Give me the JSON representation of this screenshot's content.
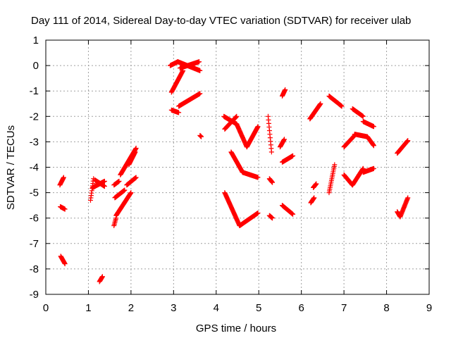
{
  "colors": {
    "series": "#ff0000",
    "axis": "#000000",
    "grid": "#a0a0a0"
  },
  "chart_data": {
    "type": "scatter",
    "title": "Day 111 of 2014, Sidereal Day-to-day VTEC variation (SDTVAR) for receiver ulab",
    "xlabel": "GPS time / hours",
    "ylabel": "SDTVAR / TECUs",
    "xlim": [
      0,
      9
    ],
    "ylim": [
      -9,
      1
    ],
    "xticks": [
      0,
      1,
      2,
      3,
      4,
      5,
      6,
      7,
      8,
      9
    ],
    "yticks": [
      1,
      0,
      -1,
      -2,
      -3,
      -4,
      -5,
      -6,
      -7,
      -8,
      -9
    ],
    "grid": true,
    "marker": "+",
    "point_spacing_hours": 0.008,
    "segments": [
      {
        "x": [
          0.33,
          0.42
        ],
        "y": [
          -4.7,
          -4.4
        ]
      },
      {
        "x": [
          0.34,
          0.45
        ],
        "y": [
          -5.55,
          -5.65
        ]
      },
      {
        "x": [
          0.35,
          0.45
        ],
        "y": [
          -7.5,
          -7.8
        ]
      },
      {
        "x": [
          1.05,
          1.12
        ],
        "y": [
          -5.3,
          -4.45
        ]
      },
      {
        "x": [
          1.1,
          1.38
        ],
        "y": [
          -4.8,
          -4.55
        ]
      },
      {
        "x": [
          1.15,
          1.38
        ],
        "y": [
          -4.5,
          -4.75
        ]
      },
      {
        "x": [
          1.26,
          1.33
        ],
        "y": [
          -8.5,
          -8.3
        ]
      },
      {
        "x": [
          1.6,
          1.72
        ],
        "y": [
          -4.7,
          -4.55
        ]
      },
      {
        "x": [
          1.6,
          1.65
        ],
        "y": [
          -6.3,
          -6.0
        ]
      },
      {
        "x": [
          1.65,
          2.0
        ],
        "y": [
          -5.9,
          -5.0
        ]
      },
      {
        "x": [
          1.62,
          1.85
        ],
        "y": [
          -5.2,
          -4.9
        ]
      },
      {
        "x": [
          1.75,
          2.12
        ],
        "y": [
          -4.3,
          -3.25
        ]
      },
      {
        "x": [
          1.9,
          2.12
        ],
        "y": [
          -4.7,
          -4.4
        ]
      },
      {
        "x": [
          1.95,
          2.1
        ],
        "y": [
          -3.9,
          -3.4
        ]
      },
      {
        "x": [
          2.92,
          3.1
        ],
        "y": [
          0.0,
          0.15
        ]
      },
      {
        "x": [
          3.1,
          3.62
        ],
        "y": [
          0.15,
          -0.2
        ]
      },
      {
        "x": [
          3.15,
          3.6
        ],
        "y": [
          -0.1,
          0.15
        ]
      },
      {
        "x": [
          2.95,
          3.22
        ],
        "y": [
          -1.05,
          -0.2
        ]
      },
      {
        "x": [
          2.95,
          3.12
        ],
        "y": [
          -1.75,
          -1.85
        ]
      },
      {
        "x": [
          3.12,
          3.62
        ],
        "y": [
          -1.6,
          -1.1
        ]
      },
      {
        "x": [
          3.62,
          3.65
        ],
        "y": [
          -2.75,
          -2.8
        ]
      },
      {
        "x": [
          4.18,
          4.48
        ],
        "y": [
          -2.0,
          -2.3
        ]
      },
      {
        "x": [
          4.48,
          4.72
        ],
        "y": [
          -2.3,
          -3.2
        ]
      },
      {
        "x": [
          4.72,
          4.98
        ],
        "y": [
          -3.2,
          -2.4
        ]
      },
      {
        "x": [
          4.2,
          4.48
        ],
        "y": [
          -2.5,
          -2.0
        ]
      },
      {
        "x": [
          4.35,
          4.62
        ],
        "y": [
          -3.4,
          -4.2
        ]
      },
      {
        "x": [
          4.62,
          4.98
        ],
        "y": [
          -4.2,
          -4.4
        ]
      },
      {
        "x": [
          4.2,
          4.55
        ],
        "y": [
          -5.0,
          -6.3
        ]
      },
      {
        "x": [
          4.55,
          4.98
        ],
        "y": [
          -6.3,
          -5.8
        ]
      },
      {
        "x": [
          5.22,
          5.3
        ],
        "y": [
          -2.0,
          -3.4
        ]
      },
      {
        "x": [
          5.25,
          5.32
        ],
        "y": [
          -4.45,
          -4.6
        ]
      },
      {
        "x": [
          5.25,
          5.32
        ],
        "y": [
          -5.9,
          -6.0
        ]
      },
      {
        "x": [
          5.5,
          5.6
        ],
        "y": [
          -3.2,
          -2.9
        ]
      },
      {
        "x": [
          5.55,
          5.62
        ],
        "y": [
          -1.2,
          -0.95
        ]
      },
      {
        "x": [
          5.55,
          5.8
        ],
        "y": [
          -3.8,
          -3.55
        ]
      },
      {
        "x": [
          5.55,
          5.8
        ],
        "y": [
          -5.5,
          -5.85
        ]
      },
      {
        "x": [
          6.2,
          6.45
        ],
        "y": [
          -2.1,
          -1.5
        ]
      },
      {
        "x": [
          6.22,
          6.3
        ],
        "y": [
          -5.4,
          -5.2
        ]
      },
      {
        "x": [
          6.28,
          6.35
        ],
        "y": [
          -4.8,
          -4.65
        ]
      },
      {
        "x": [
          6.65,
          6.78
        ],
        "y": [
          -5.0,
          -3.9
        ]
      },
      {
        "x": [
          6.65,
          6.8
        ],
        "y": [
          -1.2,
          -1.4
        ]
      },
      {
        "x": [
          6.8,
          6.95
        ],
        "y": [
          -1.4,
          -1.6
        ]
      },
      {
        "x": [
          7.0,
          7.25
        ],
        "y": [
          -3.2,
          -2.75
        ]
      },
      {
        "x": [
          7.25,
          7.55
        ],
        "y": [
          -2.7,
          -2.8
        ]
      },
      {
        "x": [
          7.55,
          7.7
        ],
        "y": [
          -2.8,
          -3.15
        ]
      },
      {
        "x": [
          7.2,
          7.45
        ],
        "y": [
          -1.7,
          -2.0
        ]
      },
      {
        "x": [
          7.45,
          7.7
        ],
        "y": [
          -2.2,
          -2.4
        ]
      },
      {
        "x": [
          7.0,
          7.2
        ],
        "y": [
          -4.3,
          -4.7
        ]
      },
      {
        "x": [
          7.2,
          7.45
        ],
        "y": [
          -4.7,
          -4.05
        ]
      },
      {
        "x": [
          7.45,
          7.7
        ],
        "y": [
          -4.2,
          -4.05
        ]
      },
      {
        "x": [
          8.25,
          8.32
        ],
        "y": [
          -5.75,
          -5.95
        ]
      },
      {
        "x": [
          8.32,
          8.5
        ],
        "y": [
          -5.95,
          -5.2
        ]
      },
      {
        "x": [
          8.25,
          8.5
        ],
        "y": [
          -3.45,
          -2.95
        ]
      }
    ]
  }
}
